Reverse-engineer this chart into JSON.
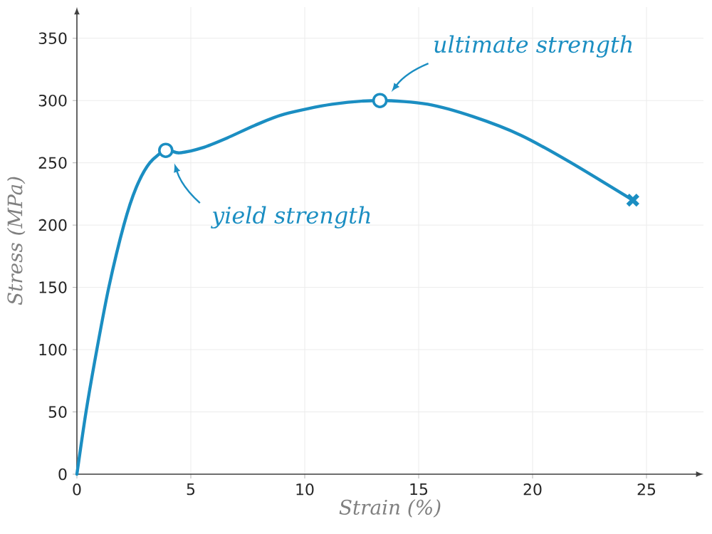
{
  "chart_data": {
    "type": "line",
    "xlabel": "Strain (%)",
    "ylabel": "Stress (MPa)",
    "xlim": [
      0,
      27.5
    ],
    "ylim": [
      0,
      375
    ],
    "xticks": [
      0,
      5,
      10,
      15,
      20,
      25
    ],
    "yticks": [
      0,
      50,
      100,
      150,
      200,
      250,
      300,
      350
    ],
    "grid": true,
    "series": [
      {
        "type": "line",
        "color": "#1b8ec2",
        "marker": "none",
        "x": [
          0,
          0.4,
          0.875,
          1.4,
          2.06,
          2.6,
          3.2,
          3.9,
          4.5,
          5.5,
          6.6,
          7.8,
          9.1,
          11.2,
          13.3,
          15.4,
          17.4,
          19.5,
          21.6,
          24.4
        ],
        "values": [
          0,
          50,
          100,
          150,
          200,
          230,
          250,
          260,
          258,
          262,
          270,
          280,
          289,
          297,
          300,
          297,
          287,
          272,
          251,
          220
        ]
      },
      {
        "type": "scatter",
        "color": "#1b8ec2",
        "marker": "circle",
        "x": [
          3.9,
          13.3
        ],
        "values": [
          260,
          300
        ]
      },
      {
        "type": "scatter",
        "color": "#1b8ec2",
        "marker": "cross",
        "x": [
          24.4
        ],
        "values": [
          220
        ]
      }
    ],
    "annotations": [
      "yield strength",
      "ultimate strength"
    ]
  }
}
